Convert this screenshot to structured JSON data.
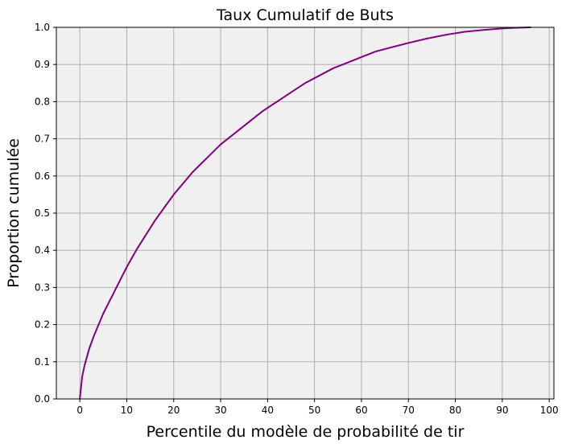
{
  "chart_data": {
    "type": "line",
    "title": "Taux Cumulatif de Buts",
    "xlabel": "Percentile du modèle de probabilité de tir",
    "ylabel": "Proportion cumulée",
    "xlim": [
      -5,
      101
    ],
    "ylim": [
      0,
      1.0
    ],
    "xticks": [
      0,
      10,
      20,
      30,
      40,
      50,
      60,
      70,
      80,
      90,
      100
    ],
    "xtick_labels": [
      "0",
      "10",
      "20",
      "30",
      "40",
      "50",
      "60",
      "70",
      "80",
      "90",
      "100"
    ],
    "yticks": [
      0,
      0.1,
      0.2,
      0.3,
      0.4,
      0.5,
      0.6,
      0.7,
      0.8,
      0.9,
      1.0
    ],
    "ytick_labels": [
      "0.0",
      "0.1",
      "0.2",
      "0.3",
      "0.4",
      "0.5",
      "0.6",
      "0.7",
      "0.8",
      "0.9",
      "1.0"
    ],
    "grid": true,
    "background_color": "#f0f0f0",
    "grid_color": "#b0b0b0",
    "series": [
      {
        "color": "#800080",
        "x": [
          0,
          0.5,
          1,
          2,
          3,
          4,
          5,
          6,
          7,
          8,
          9,
          10,
          12,
          14,
          16,
          18,
          20,
          22,
          24,
          26,
          28,
          30,
          33,
          36,
          39,
          42,
          45,
          48,
          51,
          54,
          57,
          60,
          63,
          66,
          70,
          74,
          78,
          82,
          86,
          90,
          93,
          96
        ],
        "y": [
          0.0,
          0.06,
          0.09,
          0.135,
          0.17,
          0.2,
          0.23,
          0.255,
          0.28,
          0.305,
          0.33,
          0.355,
          0.4,
          0.44,
          0.48,
          0.515,
          0.55,
          0.58,
          0.61,
          0.635,
          0.66,
          0.685,
          0.715,
          0.745,
          0.775,
          0.8,
          0.825,
          0.85,
          0.87,
          0.89,
          0.905,
          0.92,
          0.935,
          0.945,
          0.958,
          0.97,
          0.98,
          0.988,
          0.993,
          0.997,
          0.999,
          1.0
        ]
      }
    ]
  }
}
